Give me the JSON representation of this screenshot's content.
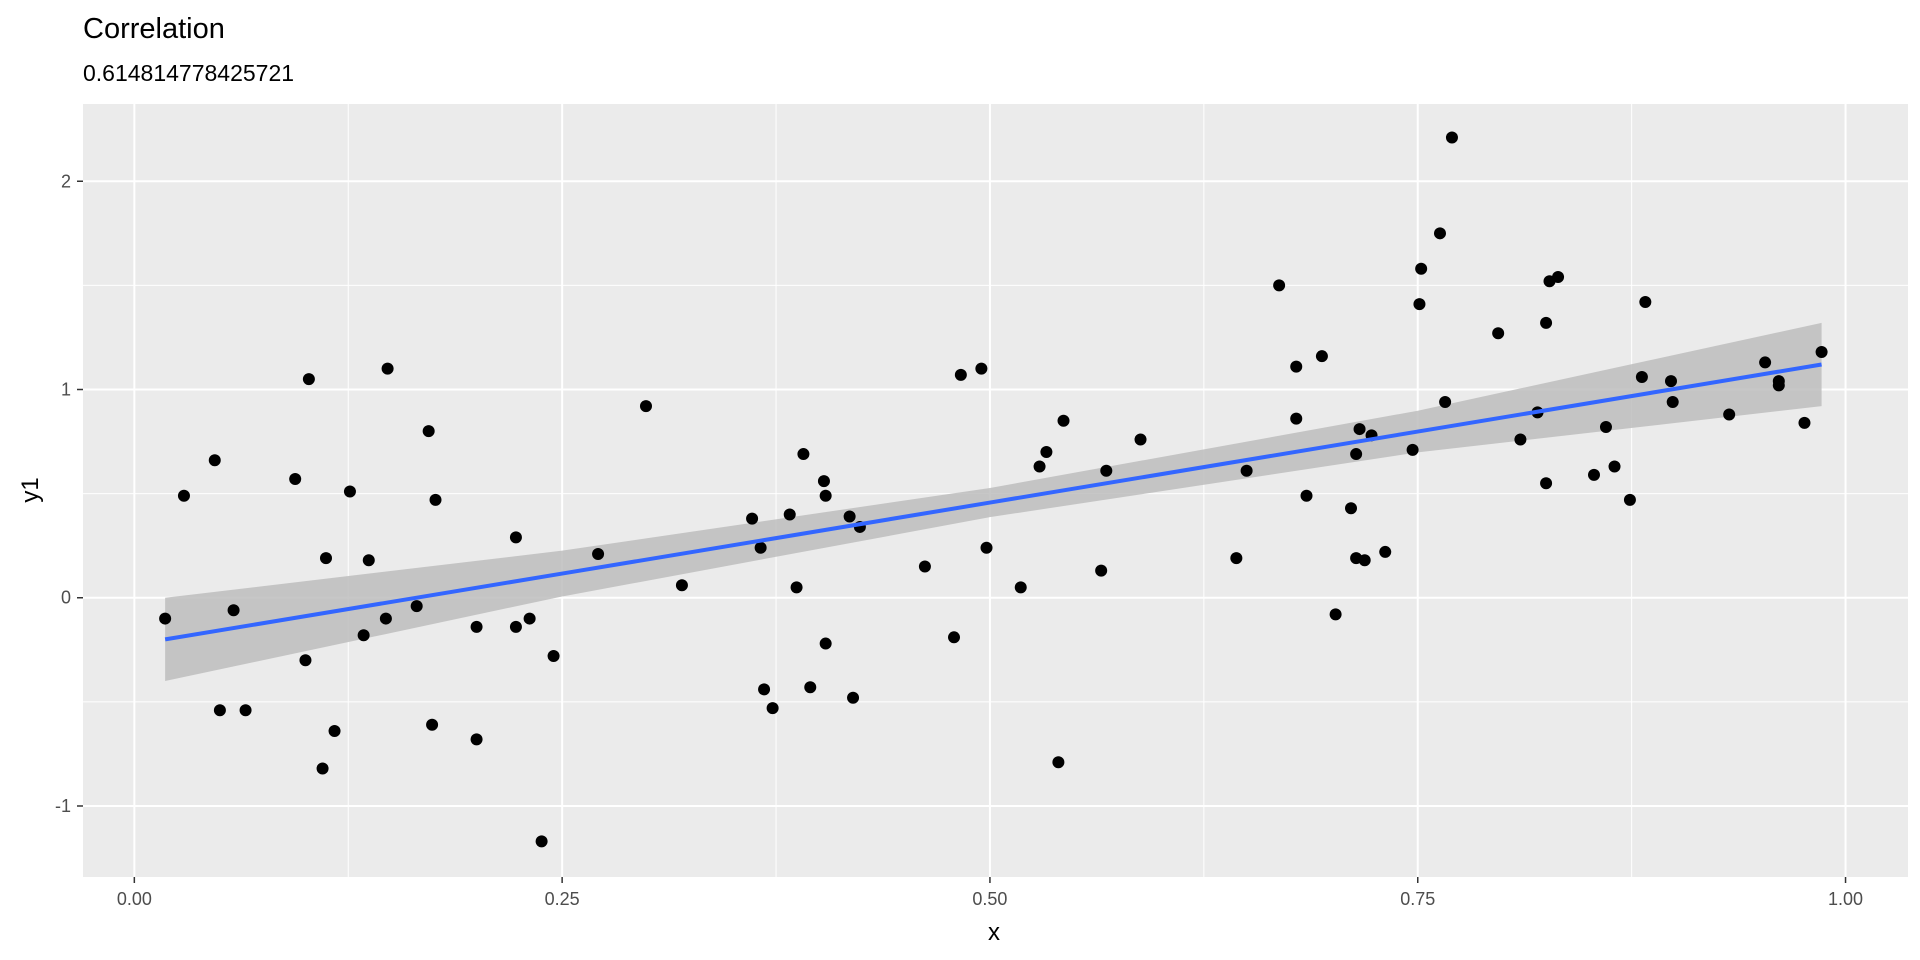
{
  "chart_data": {
    "type": "scatter",
    "title": "Correlation",
    "subtitle": "0.614814778425721",
    "x_label": "x",
    "y_label": "y1",
    "color": "#000000",
    "x": [
      0.018,
      0.029,
      0.047,
      0.05,
      0.058,
      0.065,
      0.094,
      0.1,
      0.102,
      0.11,
      0.112,
      0.117,
      0.126,
      0.134,
      0.137,
      0.147,
      0.148,
      0.165,
      0.172,
      0.174,
      0.176,
      0.2,
      0.2,
      0.223,
      0.223,
      0.231,
      0.238,
      0.245,
      0.271,
      0.299,
      0.32,
      0.361,
      0.366,
      0.368,
      0.373,
      0.383,
      0.387,
      0.391,
      0.395,
      0.403,
      0.404,
      0.404,
      0.418,
      0.42,
      0.424,
      0.462,
      0.479,
      0.483,
      0.495,
      0.498,
      0.518,
      0.529,
      0.533,
      0.54,
      0.543,
      0.565,
      0.568,
      0.588,
      0.644,
      0.65,
      0.669,
      0.679,
      0.679,
      0.685,
      0.694,
      0.702,
      0.711,
      0.714,
      0.714,
      0.716,
      0.719,
      0.723,
      0.731,
      0.747,
      0.751,
      0.752,
      0.763,
      0.766,
      0.77,
      0.797,
      0.81,
      0.82,
      0.825,
      0.825,
      0.827,
      0.832,
      0.853,
      0.86,
      0.865,
      0.874,
      0.881,
      0.883,
      0.898,
      0.899,
      0.932,
      0.953,
      0.961,
      0.961,
      0.976,
      0.986
    ],
    "values": [
      -0.1,
      0.49,
      0.66,
      -0.54,
      -0.06,
      -0.54,
      0.57,
      -0.3,
      1.05,
      -0.82,
      0.19,
      -0.64,
      0.51,
      -0.18,
      0.18,
      -0.1,
      1.1,
      -0.04,
      0.8,
      -0.61,
      0.47,
      -0.14,
      -0.68,
      0.29,
      -0.14,
      -0.1,
      -1.17,
      -0.28,
      0.21,
      0.92,
      0.06,
      0.38,
      0.24,
      -0.44,
      -0.53,
      0.4,
      0.05,
      0.69,
      -0.43,
      0.56,
      0.49,
      -0.22,
      0.39,
      -0.48,
      0.34,
      0.15,
      -0.19,
      1.07,
      1.1,
      0.24,
      0.05,
      0.63,
      0.7,
      -0.79,
      0.85,
      0.13,
      0.61,
      0.76,
      0.19,
      0.61,
      1.5,
      0.86,
      1.11,
      0.49,
      1.16,
      -0.08,
      0.43,
      0.69,
      0.19,
      0.81,
      0.18,
      0.78,
      0.22,
      0.71,
      1.41,
      1.58,
      1.75,
      0.94,
      2.21,
      1.27,
      0.76,
      0.89,
      0.55,
      1.32,
      1.52,
      1.54,
      0.59,
      0.82,
      0.63,
      0.47,
      1.06,
      1.42,
      1.04,
      0.94,
      0.88,
      1.13,
      1.04,
      1.02,
      0.84,
      1.18
    ],
    "fit": {
      "color": "#3366ff",
      "band_color": "#bdbdbd",
      "x": [
        0.018,
        0.25,
        0.5,
        0.75,
        0.986
      ],
      "y": [
        -0.2,
        0.116,
        0.457,
        0.798,
        1.12
      ],
      "lower": [
        -0.4,
        0.006,
        0.387,
        0.698,
        0.92
      ],
      "upper": [
        0.0,
        0.226,
        0.527,
        0.898,
        1.32
      ]
    },
    "xlim": [
      -0.03,
      1.0365
    ],
    "ylim": [
      -1.341,
      2.371
    ],
    "xticks": [
      {
        "value": 0,
        "label": "0.00"
      },
      {
        "value": 0.25,
        "label": "0.25"
      },
      {
        "value": 0.5,
        "label": "0.50"
      },
      {
        "value": 0.75,
        "label": "0.75"
      },
      {
        "value": 1,
        "label": "1.00"
      }
    ],
    "yticks": [
      -1,
      0,
      1,
      2
    ],
    "grid": true,
    "minor_grid": true
  }
}
